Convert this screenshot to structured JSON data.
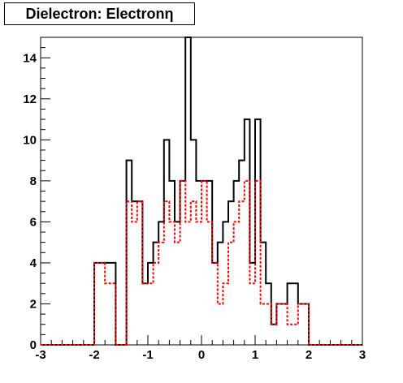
{
  "chart_data": {
    "type": "line",
    "title": "Dielectron: Electronη",
    "xlabel": "",
    "ylabel": "",
    "xlim": [
      -3,
      3
    ],
    "ylim": [
      0,
      15
    ],
    "grid": false,
    "step": "histogram",
    "x_ticks": [
      "-3",
      "-2",
      "-1",
      "0",
      "1",
      "2",
      "3"
    ],
    "y_ticks": [
      "0",
      "2",
      "4",
      "6",
      "8",
      "10",
      "12",
      "14"
    ],
    "bin_edges": [
      -3.0,
      -2.8,
      -2.6,
      -2.4,
      -2.2,
      -2.0,
      -1.8,
      -1.6,
      -1.4,
      -1.3,
      -1.2,
      -1.1,
      -1.0,
      -0.9,
      -0.8,
      -0.7,
      -0.6,
      -0.5,
      -0.4,
      -0.3,
      -0.2,
      -0.1,
      0.0,
      0.1,
      0.2,
      0.3,
      0.4,
      0.5,
      0.6,
      0.7,
      0.8,
      0.9,
      1.0,
      1.1,
      1.2,
      1.3,
      1.4,
      1.6,
      1.8,
      2.0,
      2.2,
      2.4,
      2.6,
      2.8,
      3.0
    ],
    "series": [
      {
        "color": "#000000",
        "style": "solid",
        "values": [
          0,
          0,
          0,
          0,
          0,
          4,
          4,
          0,
          9,
          7,
          7,
          3,
          4,
          5,
          6,
          10,
          8,
          6,
          8,
          15,
          10,
          8,
          8,
          8,
          4,
          5,
          6,
          7,
          8,
          9,
          11,
          4,
          11,
          5,
          3,
          1,
          2,
          3,
          2,
          0,
          0,
          0,
          0,
          0
        ]
      },
      {
        "color": "#ff0000",
        "style": "dashed",
        "values": [
          0,
          0,
          0,
          0,
          0,
          4,
          3,
          0,
          7,
          6,
          7,
          3,
          3,
          4,
          5,
          7,
          6,
          5,
          8,
          6,
          7,
          6,
          8,
          6,
          4,
          2,
          3,
          5,
          6,
          7,
          8,
          3,
          8,
          2,
          2,
          1,
          2,
          1,
          2,
          0,
          0,
          0,
          0,
          0
        ]
      }
    ]
  }
}
